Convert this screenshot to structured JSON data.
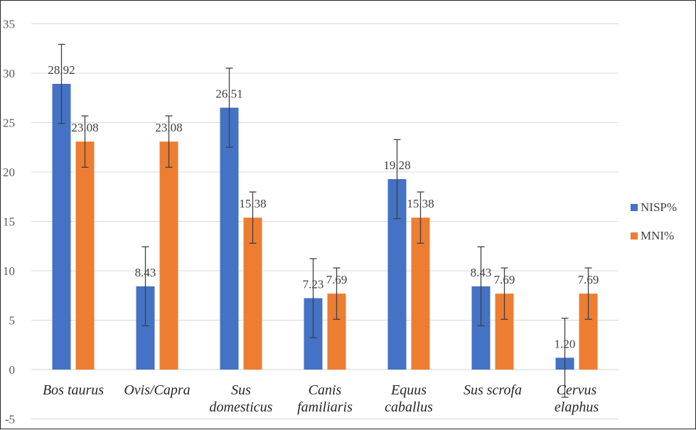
{
  "chart_data": {
    "type": "bar",
    "categories": [
      [
        "Bos taurus"
      ],
      [
        "Ovis/Capra"
      ],
      [
        "Sus",
        "domesticus"
      ],
      [
        "Canis",
        "familiaris"
      ],
      [
        "Equus",
        "caballus"
      ],
      [
        "Sus scrofa"
      ],
      [
        "Cervus",
        "elaphus"
      ]
    ],
    "series": [
      {
        "name": "NISP%",
        "color": "#4472C4",
        "values": [
          28.92,
          8.43,
          26.51,
          7.23,
          19.28,
          8.43,
          1.2
        ],
        "labels": [
          "28.92",
          "8.43",
          "26.51",
          "7.23",
          "19.28",
          "8.43",
          "1.20"
        ],
        "error": 4
      },
      {
        "name": "MNI%",
        "color": "#ED7D31",
        "values": [
          23.08,
          23.08,
          15.38,
          7.69,
          15.38,
          7.69,
          7.69
        ],
        "labels": [
          "23.08",
          "23.08",
          "15.38",
          "7.69",
          "15.38",
          "7.69",
          "7.69"
        ],
        "error": 2.6
      }
    ],
    "y_ticks": [
      "-5",
      "0",
      "5",
      "10",
      "15",
      "20",
      "25",
      "30",
      "35"
    ],
    "ylim": [
      -5,
      35
    ],
    "grid": true,
    "legend": "right",
    "title": "",
    "xlabel": "",
    "ylabel": ""
  }
}
